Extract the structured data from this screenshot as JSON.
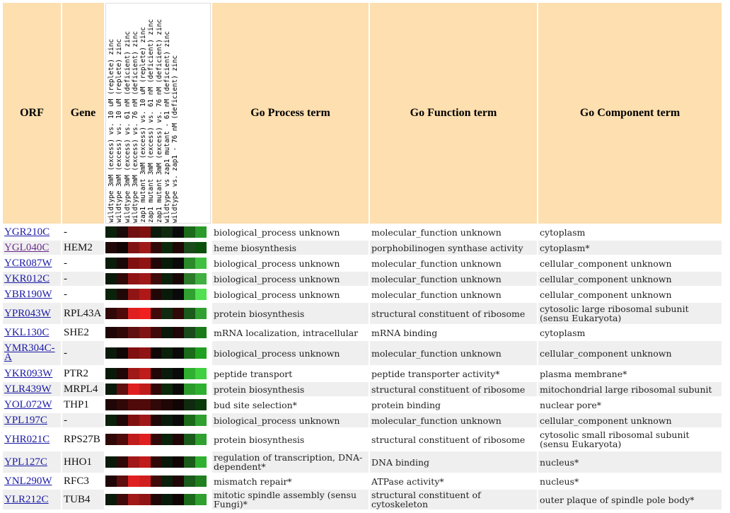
{
  "headers": {
    "orf": "ORF",
    "gene": "Gene",
    "process": "Go Process term",
    "function": "Go Function term",
    "component": "Go Component term"
  },
  "experiments": [
    "wildtype 3mM (excess) vs. 10 uM (replete) zinc",
    "wildtype 3mM (excess) vs. 10 uM (replete) zinc",
    "wildtype 3mM (excess) vs. 61 nM (deficient) zinc",
    "wildtype 3mM (excess) vs. 76 nM (deficient) zinc",
    "zap1 mutant 3mM (excess) vs. 10 uM (replete) zinc",
    "zap1 mutant 3mM (excess) vs. 61 nM (deficient) zinc",
    "zap1 mutant 3mM (excess) vs. 76 nM (deficient) zinc",
    "wildtype vs zap1 mutant - 61 nM (deficient) zinc",
    "wildtype vs. zap1 - 76 nM (deficient) zinc"
  ],
  "rows": [
    {
      "orf": "YGR210C",
      "gene": "-",
      "process": "biological_process unknown",
      "function": "molecular_function unknown",
      "component": "cytoplasm",
      "heat": [
        "#0a200a",
        "#1a0a0a",
        "#701010",
        "#801010",
        "#0a1a0a",
        "#102810",
        "#0a0a0a",
        "#1a6a1a",
        "#2a9a2a"
      ]
    },
    {
      "orf": "YGL040C",
      "gene": "HEM2",
      "process": "heme biosynthesis",
      "function": "porphobilinogen synthase activity",
      "component": "cytoplasm*",
      "visited": true,
      "heat": [
        "#200808",
        "#100404",
        "#801414",
        "#a01818",
        "#300808",
        "#0a280a",
        "#200606",
        "#1a4a1a",
        "#0a500a"
      ]
    },
    {
      "orf": "YCR087W",
      "gene": "-",
      "process": "biological_process unknown",
      "function": "molecular_function unknown",
      "component": "cellular_component unknown",
      "heat": [
        "#0a1c0a",
        "#1a0808",
        "#801010",
        "#901414",
        "#200606",
        "#081a08",
        "#0a0a0a",
        "#2a8a2a",
        "#40c040"
      ]
    },
    {
      "orf": "YKR012C",
      "gene": "-",
      "process": "biological_process unknown",
      "function": "molecular_function unknown",
      "component": "cellular_component unknown",
      "heat": [
        "#0a1a0a",
        "#300808",
        "#901414",
        "#a01818",
        "#400a0a",
        "#0a200a",
        "#180606",
        "#2a7a2a",
        "#40b040"
      ]
    },
    {
      "orf": "YBR190W",
      "gene": "-",
      "process": "biological_process unknown",
      "function": "molecular_function unknown",
      "component": "cellular_component unknown",
      "heat": [
        "#0a220a",
        "#200808",
        "#901414",
        "#b01818",
        "#200606",
        "#0a1a0a",
        "#0a0a0a",
        "#30a030",
        "#50e050"
      ]
    },
    {
      "orf": "YPR043W",
      "gene": "RPL43A",
      "process": "protein biosynthesis",
      "function": "structural constituent of ribosome",
      "component": "cytosolic large ribosomal subunit (sensu Eukaryota)",
      "heat": [
        "#300808",
        "#500a0a",
        "#e02020",
        "#f02020",
        "#400a0a",
        "#102a10",
        "#300808",
        "#1a5a1a",
        "#30a030"
      ]
    },
    {
      "orf": "YKL130C",
      "gene": "SHE2",
      "process": "mRNA localization, intracellular",
      "function": "mRNA binding",
      "component": "cytoplasm",
      "heat": [
        "#200606",
        "#300808",
        "#601010",
        "#801414",
        "#400a0a",
        "#0a180a",
        "#200606",
        "#1a4a1a",
        "#1a7a1a"
      ]
    },
    {
      "orf": "YMR304C-A",
      "gene": "-",
      "process": "biological_process unknown",
      "function": "molecular_function unknown",
      "component": "cellular_component unknown",
      "heat": [
        "#0a1a0a",
        "#100606",
        "#801010",
        "#901414",
        "#100606",
        "#0a200a",
        "#0a0a0a",
        "#1a6a1a",
        "#20a020"
      ]
    },
    {
      "orf": "YKR093W",
      "gene": "PTR2",
      "process": "peptide transport",
      "function": "peptide transporter activity*",
      "component": "plasma membrane*",
      "heat": [
        "#0a1a0a",
        "#200606",
        "#a01818",
        "#c01c1c",
        "#200606",
        "#0a1a0a",
        "#0a0a0a",
        "#30b030",
        "#40d040"
      ]
    },
    {
      "orf": "YLR439W",
      "gene": "MRPL4",
      "process": "protein biosynthesis",
      "function": "structural constituent of ribosome",
      "component": "mitochondrial large ribosomal subunit",
      "heat": [
        "#0a1a0a",
        "#601010",
        "#e02020",
        "#c01c1c",
        "#300808",
        "#0a280a",
        "#0a0a0a",
        "#2a9a2a",
        "#30b030"
      ]
    },
    {
      "orf": "YOL072W",
      "gene": "THP1",
      "process": "bud site selection*",
      "function": "protein binding",
      "component": "nuclear pore*",
      "heat": [
        "#200606",
        "#300808",
        "#500a0a",
        "#500a0a",
        "#300808",
        "#200606",
        "#100404",
        "#102a10",
        "#0a3a0a"
      ]
    },
    {
      "orf": "YPL197C",
      "gene": "-",
      "process": "biological_process unknown",
      "function": "molecular_function unknown",
      "component": "cellular_component unknown",
      "heat": [
        "#0a200a",
        "#200606",
        "#801010",
        "#a01818",
        "#200606",
        "#0a1a0a",
        "#0a0a0a",
        "#1a6a1a",
        "#30a030"
      ]
    },
    {
      "orf": "YHR021C",
      "gene": "RPS27B",
      "process": "protein biosynthesis",
      "function": "structural constituent of ribosome",
      "component": "cytosolic small ribosomal subunit (sensu Eukaryota)",
      "heat": [
        "#300808",
        "#500a0a",
        "#c01c1c",
        "#e02020",
        "#300808",
        "#0a220a",
        "#200606",
        "#1a5a1a",
        "#30a030"
      ]
    },
    {
      "orf": "YPL127C",
      "gene": "HHO1",
      "process": "regulation of transcription, DNA-dependent*",
      "function": "DNA binding",
      "component": "nucleus*",
      "heat": [
        "#0a1a0a",
        "#300808",
        "#a01818",
        "#c01c1c",
        "#300808",
        "#0a180a",
        "#100404",
        "#1a5a1a",
        "#30b030"
      ]
    },
    {
      "orf": "YNL290W",
      "gene": "RFC3",
      "process": "mismatch repair*",
      "function": "ATPase activity*",
      "component": "nucleus*",
      "heat": [
        "#200606",
        "#600e0e",
        "#e02020",
        "#d01e1e",
        "#400a0a",
        "#0a200a",
        "#200606",
        "#1a5a1a",
        "#208020"
      ]
    },
    {
      "orf": "YLR212C",
      "gene": "TUB4",
      "process": "mitotic spindle assembly (sensu Fungi)*",
      "function": "structural constituent of cytoskeleton",
      "component": "outer plaque of spindle pole body*",
      "heat": [
        "#0a1a0a",
        "#400a0a",
        "#a01818",
        "#901414",
        "#200606",
        "#0a1a0a",
        "#100404",
        "#1a6a1a",
        "#30a030"
      ]
    }
  ]
}
